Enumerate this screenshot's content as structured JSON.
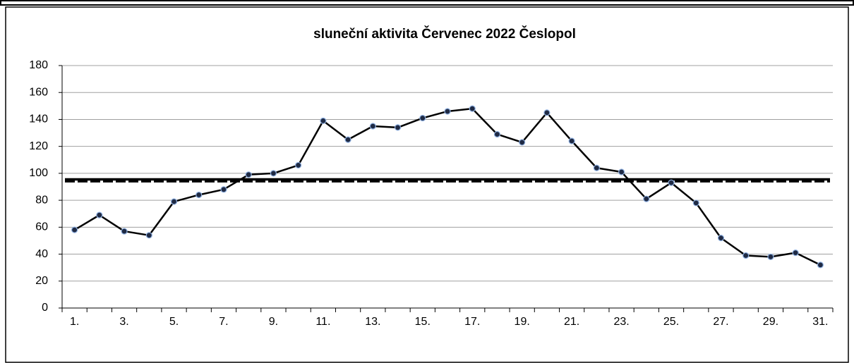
{
  "chart_data": {
    "type": "line",
    "title": "sluneční aktivita Červenec 2022 Česlopol",
    "categories": [
      "1.",
      null,
      "3.",
      null,
      "5.",
      null,
      "7.",
      null,
      "9.",
      null,
      "11.",
      null,
      "13.",
      null,
      "15.",
      null,
      "17.",
      null,
      "19.",
      null,
      "21.",
      null,
      "23.",
      null,
      "25.",
      null,
      "27.",
      null,
      "29.",
      null,
      "31."
    ],
    "values": [
      58,
      69,
      57,
      54,
      79,
      84,
      88,
      99,
      100,
      106,
      139,
      125,
      135,
      134,
      141,
      146,
      148,
      129,
      123,
      145,
      124,
      104,
      101,
      81,
      93,
      78,
      52,
      39,
      38,
      41,
      32
    ],
    "color": "#000000",
    "marker_color": "#1f2a44",
    "marker_edge_color": "#8fb0e0",
    "reference_lines": [
      {
        "value": 95.5,
        "style": "solid",
        "color": "#000000"
      },
      {
        "value": 94,
        "style": "dashed",
        "color": "#000000"
      }
    ],
    "ylim": [
      0,
      180
    ],
    "yticks": [
      0,
      20,
      40,
      60,
      80,
      100,
      120,
      140,
      160,
      180
    ],
    "grid": true
  }
}
